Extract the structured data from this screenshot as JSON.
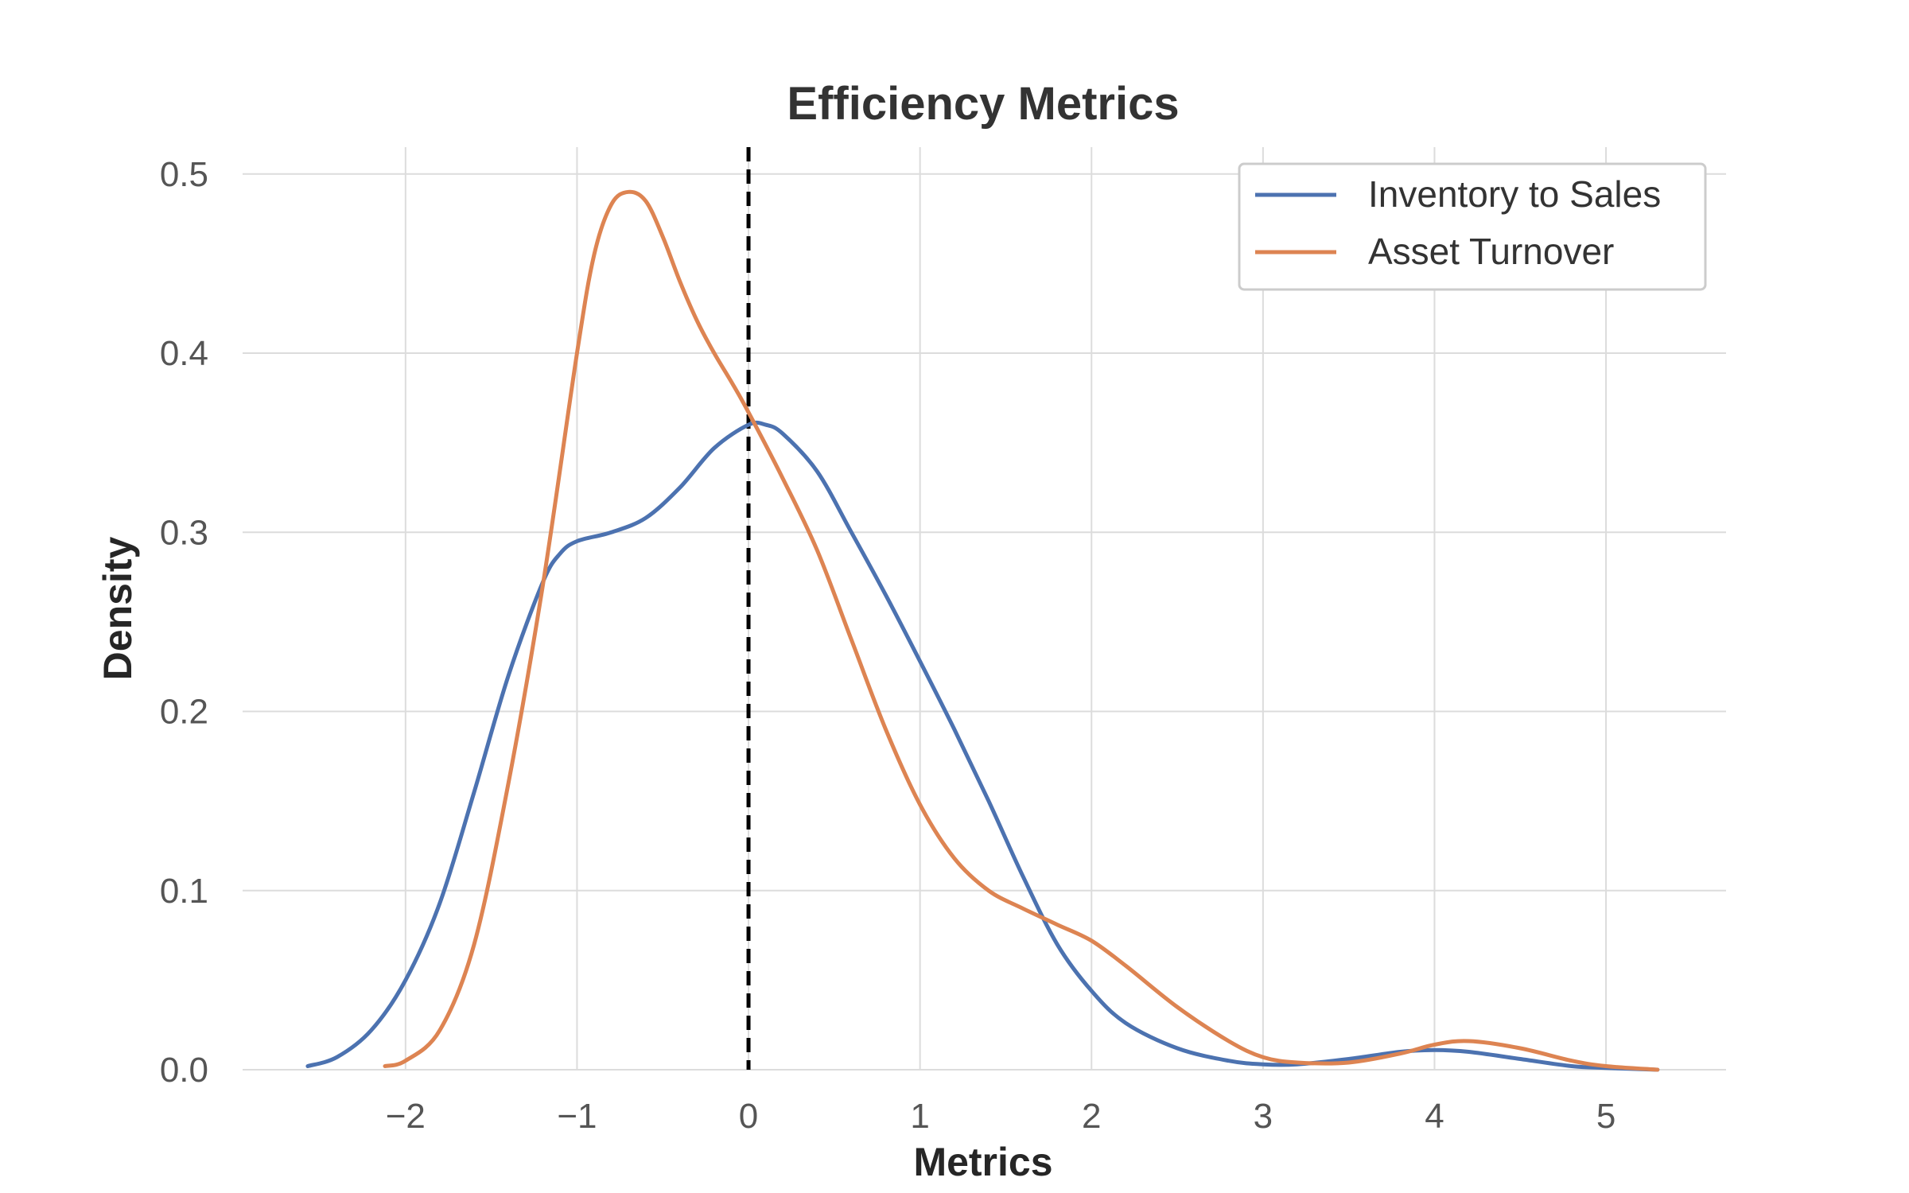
{
  "chart_data": {
    "type": "line",
    "title": "Efficiency Metrics",
    "xlabel": "Metrics",
    "ylabel": "Density",
    "xlim": [
      -2.95,
      5.7
    ],
    "ylim": [
      0,
      0.515
    ],
    "xticks": [
      -2,
      -1,
      0,
      1,
      2,
      3,
      4,
      5
    ],
    "xtick_labels": [
      "−2",
      "−1",
      "0",
      "1",
      "2",
      "3",
      "4",
      "5"
    ],
    "yticks": [
      0.0,
      0.1,
      0.2,
      0.3,
      0.4,
      0.5
    ],
    "ytick_labels": [
      "0.0",
      "0.1",
      "0.2",
      "0.3",
      "0.4",
      "0.5"
    ],
    "grid": true,
    "legend_position": "top-right",
    "reference_line": {
      "x": 0,
      "style": "dashed",
      "color": "#000000"
    },
    "series": [
      {
        "name": "Inventory to Sales",
        "color": "#4c72b0",
        "x": [
          -2.57,
          -2.4,
          -2.2,
          -2.0,
          -1.8,
          -1.6,
          -1.4,
          -1.2,
          -1.1,
          -1.0,
          -0.8,
          -0.6,
          -0.4,
          -0.2,
          0.0,
          0.1,
          0.2,
          0.4,
          0.6,
          0.8,
          1.0,
          1.2,
          1.4,
          1.6,
          1.8,
          2.0,
          2.2,
          2.5,
          2.8,
          3.0,
          3.2,
          3.5,
          3.8,
          4.0,
          4.2,
          4.5,
          4.8,
          5.0,
          5.3
        ],
        "y": [
          0.002,
          0.007,
          0.022,
          0.05,
          0.093,
          0.155,
          0.22,
          0.272,
          0.288,
          0.295,
          0.3,
          0.308,
          0.325,
          0.347,
          0.36,
          0.36,
          0.355,
          0.334,
          0.3,
          0.265,
          0.228,
          0.19,
          0.15,
          0.108,
          0.07,
          0.044,
          0.026,
          0.012,
          0.005,
          0.003,
          0.003,
          0.006,
          0.01,
          0.011,
          0.01,
          0.006,
          0.002,
          0.001,
          0.0
        ]
      },
      {
        "name": "Asset Turnover",
        "color": "#dd8452",
        "x": [
          -2.12,
          -2.0,
          -1.8,
          -1.6,
          -1.4,
          -1.2,
          -1.0,
          -0.9,
          -0.8,
          -0.7,
          -0.6,
          -0.5,
          -0.4,
          -0.3,
          -0.2,
          -0.1,
          0.0,
          0.2,
          0.4,
          0.6,
          0.8,
          1.0,
          1.2,
          1.4,
          1.6,
          1.8,
          2.0,
          2.2,
          2.5,
          2.8,
          3.0,
          3.2,
          3.5,
          3.8,
          4.0,
          4.2,
          4.5,
          4.8,
          5.0,
          5.3
        ],
        "y": [
          0.002,
          0.005,
          0.022,
          0.07,
          0.16,
          0.27,
          0.4,
          0.455,
          0.483,
          0.49,
          0.485,
          0.465,
          0.44,
          0.418,
          0.4,
          0.384,
          0.367,
          0.33,
          0.29,
          0.24,
          0.19,
          0.148,
          0.118,
          0.1,
          0.09,
          0.081,
          0.072,
          0.058,
          0.035,
          0.016,
          0.007,
          0.004,
          0.004,
          0.009,
          0.014,
          0.016,
          0.012,
          0.005,
          0.002,
          0.0
        ]
      }
    ]
  }
}
